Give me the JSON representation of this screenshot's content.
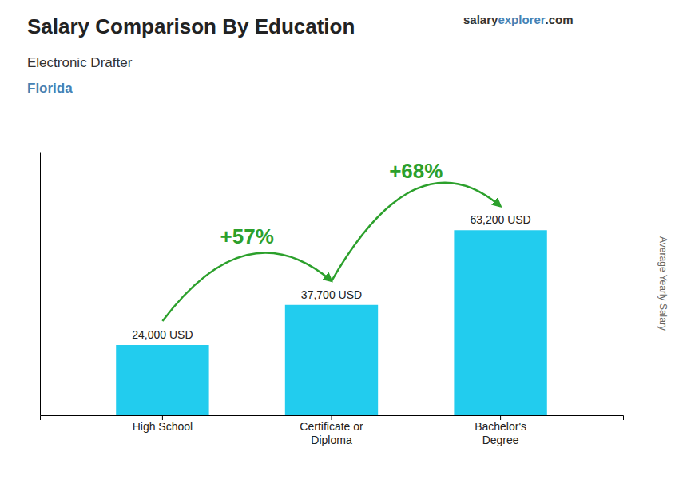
{
  "chart_data": {
    "type": "bar",
    "title": "Salary Comparison By Education",
    "subtitle": "Electronic Drafter",
    "location": "Florida",
    "watermark": [
      "salary",
      "explorer",
      ".com"
    ],
    "categories": [
      "High School",
      "Certificate or\nDiploma",
      "Bachelor's\nDegree"
    ],
    "values": [
      24000,
      37700,
      63200
    ],
    "value_labels": [
      "24,000 USD",
      "37,700 USD",
      "63,200 USD"
    ],
    "annotations": [
      "+57%",
      "+68%"
    ],
    "ylabel": "Average Yearly Salary",
    "color": "#22ccee",
    "ylim": [
      0,
      90000
    ],
    "tick_labels": "x"
  }
}
